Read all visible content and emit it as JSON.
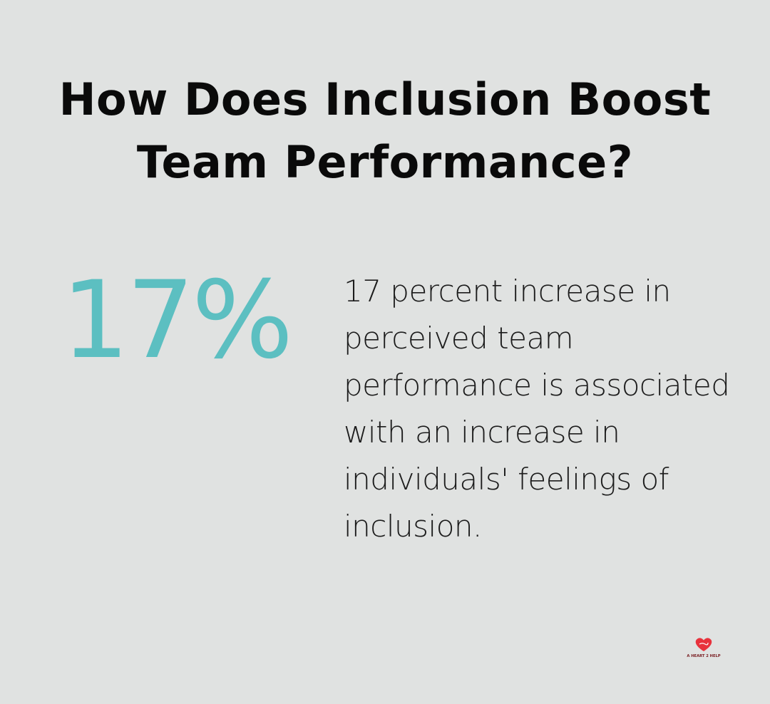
{
  "title": {
    "line1": "How Does Inclusion Boost",
    "line2": "Team Performance?"
  },
  "stat": {
    "value": "17%"
  },
  "description": {
    "text": "17 percent increase in perceived team performance is associated with an increase in individuals' feelings of inclusion."
  },
  "logo": {
    "icon": "heart-hands-icon",
    "text": "A HEART 2 HELP",
    "heart_color": "#e8323c",
    "text_color": "#7a2024"
  },
  "colors": {
    "background": "#e0e2e1",
    "accent": "#5cbfc1",
    "title": "#0a0a0a",
    "body": "#1c1c1c"
  }
}
